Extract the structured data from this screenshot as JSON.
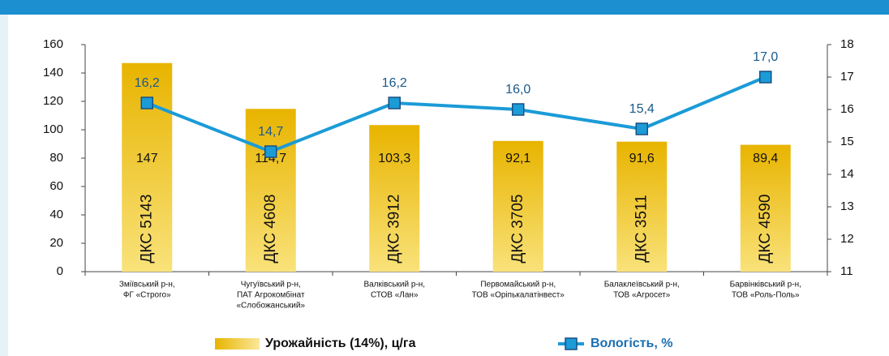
{
  "chart_data": {
    "type": "bar",
    "categories": [
      [
        "Зміївський р-н,",
        "ФГ «Строго»"
      ],
      [
        "Чугуївський р-н,",
        "ПАТ Агрокомбінат",
        "«Слобожанський»"
      ],
      [
        "Валківський р-н,",
        "СТОВ «Лан»"
      ],
      [
        "Первомайський р-н,",
        "ТОВ «Оріпькалатінвест»"
      ],
      [
        "Балаклеївський р-н,",
        "ТОВ «Агросет»"
      ],
      [
        "Барвінківський р-н,",
        "ТОВ «Роль-Поль»"
      ]
    ],
    "bar_labels": [
      "ДКС 5143",
      "ДКС 4608",
      "ДКС 3912",
      "ДКС 3705",
      "ДКС 3511",
      "ДКС 4590"
    ],
    "series": [
      {
        "name": "Урожайність (14%), ц/га",
        "type": "bar",
        "color": "#e5b200",
        "values": [
          147,
          114.7,
          103.3,
          92.1,
          91.6,
          89.4
        ],
        "value_labels": [
          "147",
          "114,7",
          "103,3",
          "92,1",
          "91,6",
          "89,4"
        ]
      },
      {
        "name": "Вологість, %",
        "type": "line",
        "axis": "y2",
        "color": "#1b9bd7",
        "values": [
          16.2,
          14.7,
          16.2,
          16.0,
          15.4,
          17.0
        ],
        "value_labels": [
          "16,2",
          "14,7",
          "16,2",
          "16,0",
          "15,4",
          "17,0"
        ]
      }
    ],
    "ylim": [
      0,
      160
    ],
    "yticks": [
      0,
      20,
      40,
      60,
      80,
      100,
      120,
      140,
      160
    ],
    "y2lim": [
      11,
      18
    ],
    "y2ticks": [
      11,
      12,
      13,
      14,
      15,
      16,
      17,
      18
    ]
  }
}
